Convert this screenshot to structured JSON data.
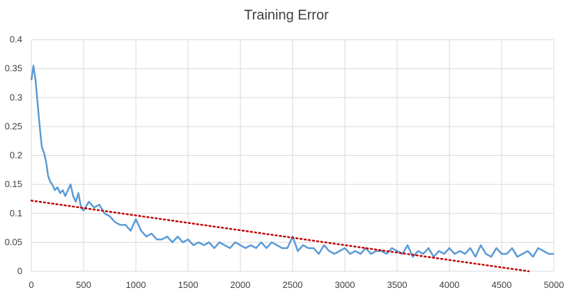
{
  "chart_data": {
    "type": "line",
    "title": "Training Error",
    "xlabel": "",
    "ylabel": "",
    "xlim": [
      0,
      5000
    ],
    "ylim": [
      0,
      0.4
    ],
    "x_ticks": [
      "0",
      "500",
      "1000",
      "1500",
      "2000",
      "2500",
      "3000",
      "3500",
      "4000",
      "4500",
      "5000"
    ],
    "y_ticks": [
      "0",
      "0.05",
      "0.1",
      "0.15",
      "0.2",
      "0.25",
      "0.3",
      "0.35",
      "0.4"
    ],
    "grid": true,
    "legend": "none",
    "series": [
      {
        "kind": "line",
        "color": "#5b9bd5",
        "x": [
          0,
          20,
          40,
          60,
          80,
          100,
          120,
          140,
          160,
          180,
          200,
          225,
          250,
          275,
          300,
          325,
          350,
          375,
          400,
          425,
          450,
          475,
          500,
          550,
          600,
          650,
          700,
          750,
          800,
          850,
          900,
          950,
          1000,
          1050,
          1100,
          1150,
          1200,
          1250,
          1300,
          1350,
          1400,
          1450,
          1500,
          1550,
          1600,
          1650,
          1700,
          1750,
          1800,
          1850,
          1900,
          1950,
          2000,
          2050,
          2100,
          2150,
          2200,
          2250,
          2300,
          2350,
          2400,
          2450,
          2500,
          2550,
          2600,
          2650,
          2700,
          2750,
          2800,
          2850,
          2900,
          2950,
          3000,
          3050,
          3100,
          3150,
          3200,
          3250,
          3300,
          3350,
          3400,
          3450,
          3500,
          3550,
          3600,
          3650,
          3700,
          3750,
          3800,
          3850,
          3900,
          3950,
          4000,
          4050,
          4100,
          4150,
          4200,
          4250,
          4300,
          4350,
          4400,
          4450,
          4500,
          4550,
          4600,
          4650,
          4700,
          4750,
          4800,
          4850,
          4900,
          4950,
          5000
        ],
        "y": [
          0.33,
          0.355,
          0.33,
          0.29,
          0.25,
          0.215,
          0.205,
          0.19,
          0.165,
          0.155,
          0.15,
          0.14,
          0.145,
          0.135,
          0.14,
          0.13,
          0.14,
          0.15,
          0.13,
          0.12,
          0.135,
          0.11,
          0.105,
          0.12,
          0.11,
          0.115,
          0.1,
          0.095,
          0.085,
          0.08,
          0.08,
          0.07,
          0.09,
          0.07,
          0.06,
          0.065,
          0.055,
          0.055,
          0.06,
          0.05,
          0.06,
          0.05,
          0.055,
          0.045,
          0.05,
          0.045,
          0.05,
          0.04,
          0.05,
          0.045,
          0.04,
          0.05,
          0.045,
          0.04,
          0.045,
          0.04,
          0.05,
          0.04,
          0.05,
          0.045,
          0.04,
          0.04,
          0.06,
          0.035,
          0.045,
          0.04,
          0.04,
          0.03,
          0.045,
          0.035,
          0.03,
          0.035,
          0.04,
          0.03,
          0.035,
          0.03,
          0.04,
          0.03,
          0.035,
          0.035,
          0.03,
          0.04,
          0.035,
          0.03,
          0.045,
          0.025,
          0.035,
          0.03,
          0.04,
          0.025,
          0.035,
          0.03,
          0.04,
          0.03,
          0.035,
          0.03,
          0.04,
          0.025,
          0.045,
          0.03,
          0.025,
          0.04,
          0.03,
          0.03,
          0.04,
          0.025,
          0.03,
          0.035,
          0.025,
          0.04,
          0.035,
          0.03,
          0.03
        ]
      },
      {
        "kind": "trendline",
        "style": "dotted",
        "color": "#c00000",
        "x": [
          0,
          4760
        ],
        "y": [
          0.122,
          0.0
        ]
      }
    ]
  }
}
